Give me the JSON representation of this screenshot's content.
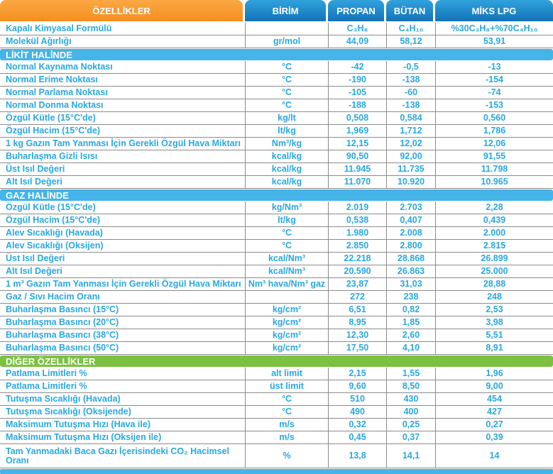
{
  "colors": {
    "orange_top": "#FAA845",
    "orange_bottom": "#F68E1E",
    "blue_top": "#2FA3DC",
    "blue_bottom": "#1472B8",
    "section_blue": "#45B4E8",
    "section_green": "#7CC142",
    "text_blue": "#29A8E0",
    "line": "#8C8C8C"
  },
  "table": {
    "header": {
      "col_label": "ÖZELLİKLER",
      "col_unit": "BİRİM",
      "col_propan": "PROPAN",
      "col_butan": "BÜTAN",
      "col_miks": "MİKS LPG"
    },
    "rows": [
      {
        "type": "data",
        "label": "Kapalı Kimyasal Formülü",
        "unit": "",
        "propan": "C₃H₈",
        "butan": "C₄H₁₀",
        "miks": "%30C₃H₈+%70C₄H₁₀"
      },
      {
        "type": "data",
        "label": "Molekül Ağırlığı",
        "unit": "gr/mol",
        "propan": "44,09",
        "butan": "58,12",
        "miks": "53,91"
      },
      {
        "type": "section",
        "label": "LİKİT HALİNDE",
        "color": "blue"
      },
      {
        "type": "data",
        "label": "Normal Kaynama Noktası",
        "unit": "°C",
        "propan": "-42",
        "butan": "-0,5",
        "miks": "-13"
      },
      {
        "type": "data",
        "label": "Normal Erime Noktası",
        "unit": "°C",
        "propan": "-190",
        "butan": "-138",
        "miks": "-154"
      },
      {
        "type": "data",
        "label": "Normal Parlama Noktası",
        "unit": "°C",
        "propan": "-105",
        "butan": "-60",
        "miks": "-74"
      },
      {
        "type": "data",
        "label": "Normal Donma Noktası",
        "unit": "°C",
        "propan": "-188",
        "butan": "-138",
        "miks": "-153"
      },
      {
        "type": "data",
        "label": "Özgül Kütle (15°C'de)",
        "unit": "kg/lt",
        "propan": "0,508",
        "butan": "0,584",
        "miks": "0,560"
      },
      {
        "type": "data",
        "label": "Özgül Hacim (15°C'de)",
        "unit": "lt/kg",
        "propan": "1,969",
        "butan": "1,712",
        "miks": "1,786"
      },
      {
        "type": "data",
        "label": "1 kg Gazın Tam Yanması İçin Gerekli Özgül Hava Miktarı",
        "unit": "Nm³/kg",
        "propan": "12,15",
        "butan": "12,02",
        "miks": "12,06"
      },
      {
        "type": "data",
        "label": "Buharlaşma Gizli Isısı",
        "unit": "kcal/kg",
        "propan": "90,50",
        "butan": "92,00",
        "miks": "91,55"
      },
      {
        "type": "data",
        "label": "Üst Isıl Değeri",
        "unit": "kcal/kg",
        "propan": "11.945",
        "butan": "11.735",
        "miks": "11.798"
      },
      {
        "type": "data",
        "label": "Alt Isıl Değeri",
        "unit": "kcal/kg",
        "propan": "11.070",
        "butan": "10.920",
        "miks": "10.965"
      },
      {
        "type": "section",
        "label": "GAZ HALİNDE",
        "color": "blue"
      },
      {
        "type": "data",
        "label": "Özgül Kütle (15°C'de)",
        "unit": "kg/Nm³",
        "propan": "2.019",
        "butan": "2.703",
        "miks": "2,28"
      },
      {
        "type": "data",
        "label": "Özgül Hacim (15°C'de)",
        "unit": "lt/kg",
        "propan": "0,538",
        "butan": "0,407",
        "miks": "0,439"
      },
      {
        "type": "data",
        "label": "Alev Sıcaklığı (Havada)",
        "unit": "°C",
        "propan": "1.980",
        "butan": "2.008",
        "miks": "2.000"
      },
      {
        "type": "data",
        "label": "Alev Sıcaklığı (Oksijen)",
        "unit": "°C",
        "propan": "2.850",
        "butan": "2.800",
        "miks": "2.815"
      },
      {
        "type": "data",
        "label": "Üst Isıl Değeri",
        "unit": "kcal/Nm³",
        "propan": "22.218",
        "butan": "28.868",
        "miks": "26.899"
      },
      {
        "type": "data",
        "label": "Alt Isıl Değeri",
        "unit": "kcal/Nm³",
        "propan": "20.590",
        "butan": "26.863",
        "miks": "25.000"
      },
      {
        "type": "data",
        "label": "1 m³ Gazın Tam Yanması İçin Gerekli Özgül Hava Miktarı",
        "unit": "Nm³ hava/Nm³ gaz",
        "propan": "23,87",
        "butan": "31,03",
        "miks": "28,88"
      },
      {
        "type": "data",
        "label": "Gaz / Sıvı Hacim Oranı",
        "unit": "",
        "propan": "272",
        "butan": "238",
        "miks": "248"
      },
      {
        "type": "data",
        "label": "Buharlaşma Basıncı (15°C)",
        "unit": "kg/cm²",
        "propan": "6,51",
        "butan": "0,82",
        "miks": "2,53"
      },
      {
        "type": "data",
        "label": "Buharlaşma Basıncı (20°C)",
        "unit": "kg/cm²",
        "propan": "8,95",
        "butan": "1,85",
        "miks": "3,98"
      },
      {
        "type": "data",
        "label": "Buharlaşma Basıncı (38°C)",
        "unit": "kg/cm²",
        "propan": "12,30",
        "butan": "2,60",
        "miks": "5,51"
      },
      {
        "type": "data",
        "label": "Buharlaşma Basıncı (50°C)",
        "unit": "kg/cm²",
        "propan": "17,50",
        "butan": "4,10",
        "miks": "8,91"
      },
      {
        "type": "section",
        "label": "DİĞER ÖZELLİKLER",
        "color": "green"
      },
      {
        "type": "data",
        "label": "Patlama Limitleri %",
        "unit": "alt limit",
        "propan": "2,15",
        "butan": "1,55",
        "miks": "1,96"
      },
      {
        "type": "data",
        "label": "Patlama Limitleri %",
        "unit": "üst limit",
        "propan": "9,60",
        "butan": "8,50",
        "miks": "9,00"
      },
      {
        "type": "data",
        "label": "Tutuşma Sıcaklığı (Havada)",
        "unit": "°C",
        "propan": "510",
        "butan": "430",
        "miks": "454"
      },
      {
        "type": "data",
        "label": "Tutuşma Sıcaklığı (Oksijende)",
        "unit": "°C",
        "propan": "490",
        "butan": "400",
        "miks": "427"
      },
      {
        "type": "data",
        "label": "Maksimum Tutuşma Hızı (Hava ile)",
        "unit": "m/s",
        "propan": "0,32",
        "butan": "0,25",
        "miks": "0,27"
      },
      {
        "type": "data",
        "label": "Maksimum Tutuşma Hızı (Oksijen ile)",
        "unit": "m/s",
        "propan": "0,45",
        "butan": "0,37",
        "miks": "0,39"
      },
      {
        "type": "data",
        "tall": true,
        "label": "Tam Yanmadaki Baca Gazı İçerisindeki CO₂ Hacimsel Oranı",
        "unit": "%",
        "propan": "13,8",
        "butan": "14,1",
        "miks": "14"
      }
    ]
  }
}
